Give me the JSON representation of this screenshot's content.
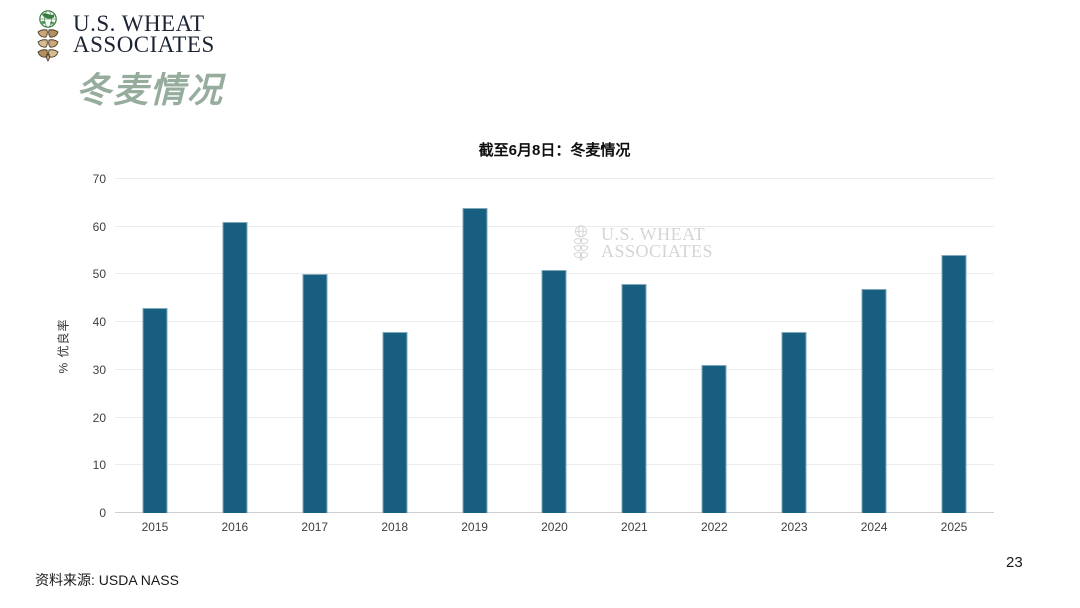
{
  "slide": {
    "logo": {
      "line1": "U.S. WHEAT",
      "line2": "ASSOCIATES"
    },
    "title": "冬麦情况",
    "source": "资料来源: USDA NASS",
    "page_number": "23"
  },
  "watermark": {
    "line1": "U.S. WHEAT",
    "line2": "ASSOCIATES"
  },
  "chart_data": {
    "type": "bar",
    "title": "截至6月8日：冬麦情况",
    "categories": [
      "2015",
      "2016",
      "2017",
      "2018",
      "2019",
      "2020",
      "2021",
      "2022",
      "2023",
      "2024",
      "2025"
    ],
    "values": [
      43,
      61,
      50,
      38,
      64,
      51,
      48,
      31,
      38,
      47,
      54
    ],
    "xlabel": "",
    "ylabel": "% 优良率",
    "ylim": [
      0,
      70
    ],
    "yticks": [
      0,
      10,
      20,
      30,
      40,
      50,
      60,
      70
    ],
    "grid": true,
    "legend": "none",
    "bar_color": "#175E80"
  },
  "colors": {
    "accent_green": "#96AD9E",
    "bar": "#175E80",
    "watermark_gray": "#D4D4D1",
    "gridline": "#ECECEC",
    "logo_navy": "#1C2433"
  }
}
